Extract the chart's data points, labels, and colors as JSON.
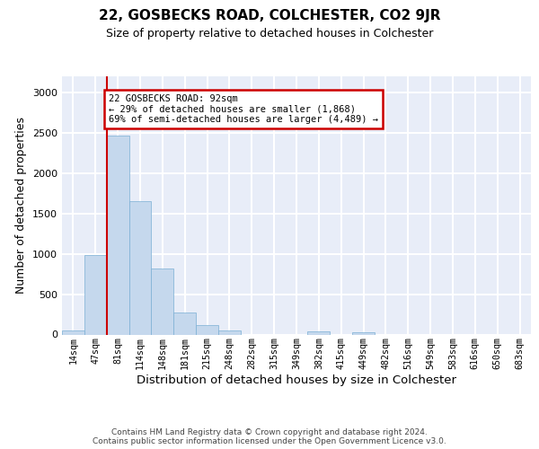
{
  "title": "22, GOSBECKS ROAD, COLCHESTER, CO2 9JR",
  "subtitle": "Size of property relative to detached houses in Colchester",
  "xlabel": "Distribution of detached houses by size in Colchester",
  "ylabel": "Number of detached properties",
  "categories": [
    "14sqm",
    "47sqm",
    "81sqm",
    "114sqm",
    "148sqm",
    "181sqm",
    "215sqm",
    "248sqm",
    "282sqm",
    "315sqm",
    "349sqm",
    "382sqm",
    "415sqm",
    "449sqm",
    "482sqm",
    "516sqm",
    "549sqm",
    "583sqm",
    "616sqm",
    "650sqm",
    "683sqm"
  ],
  "values": [
    50,
    990,
    2470,
    1650,
    820,
    270,
    120,
    50,
    0,
    0,
    0,
    40,
    0,
    30,
    0,
    0,
    0,
    0,
    0,
    0,
    0
  ],
  "bar_color": "#c5d8ed",
  "bar_edge_color": "#7bafd4",
  "property_line_idx": 2,
  "property_line_color": "#cc0000",
  "annotation_text": "22 GOSBECKS ROAD: 92sqm\n← 29% of detached houses are smaller (1,868)\n69% of semi-detached houses are larger (4,489) →",
  "annotation_box_edgecolor": "#cc0000",
  "ylim": [
    0,
    3200
  ],
  "yticks": [
    0,
    500,
    1000,
    1500,
    2000,
    2500,
    3000
  ],
  "plot_bg": "#e8edf8",
  "grid_color": "#ffffff",
  "footer1": "Contains HM Land Registry data © Crown copyright and database right 2024.",
  "footer2": "Contains public sector information licensed under the Open Government Licence v3.0."
}
